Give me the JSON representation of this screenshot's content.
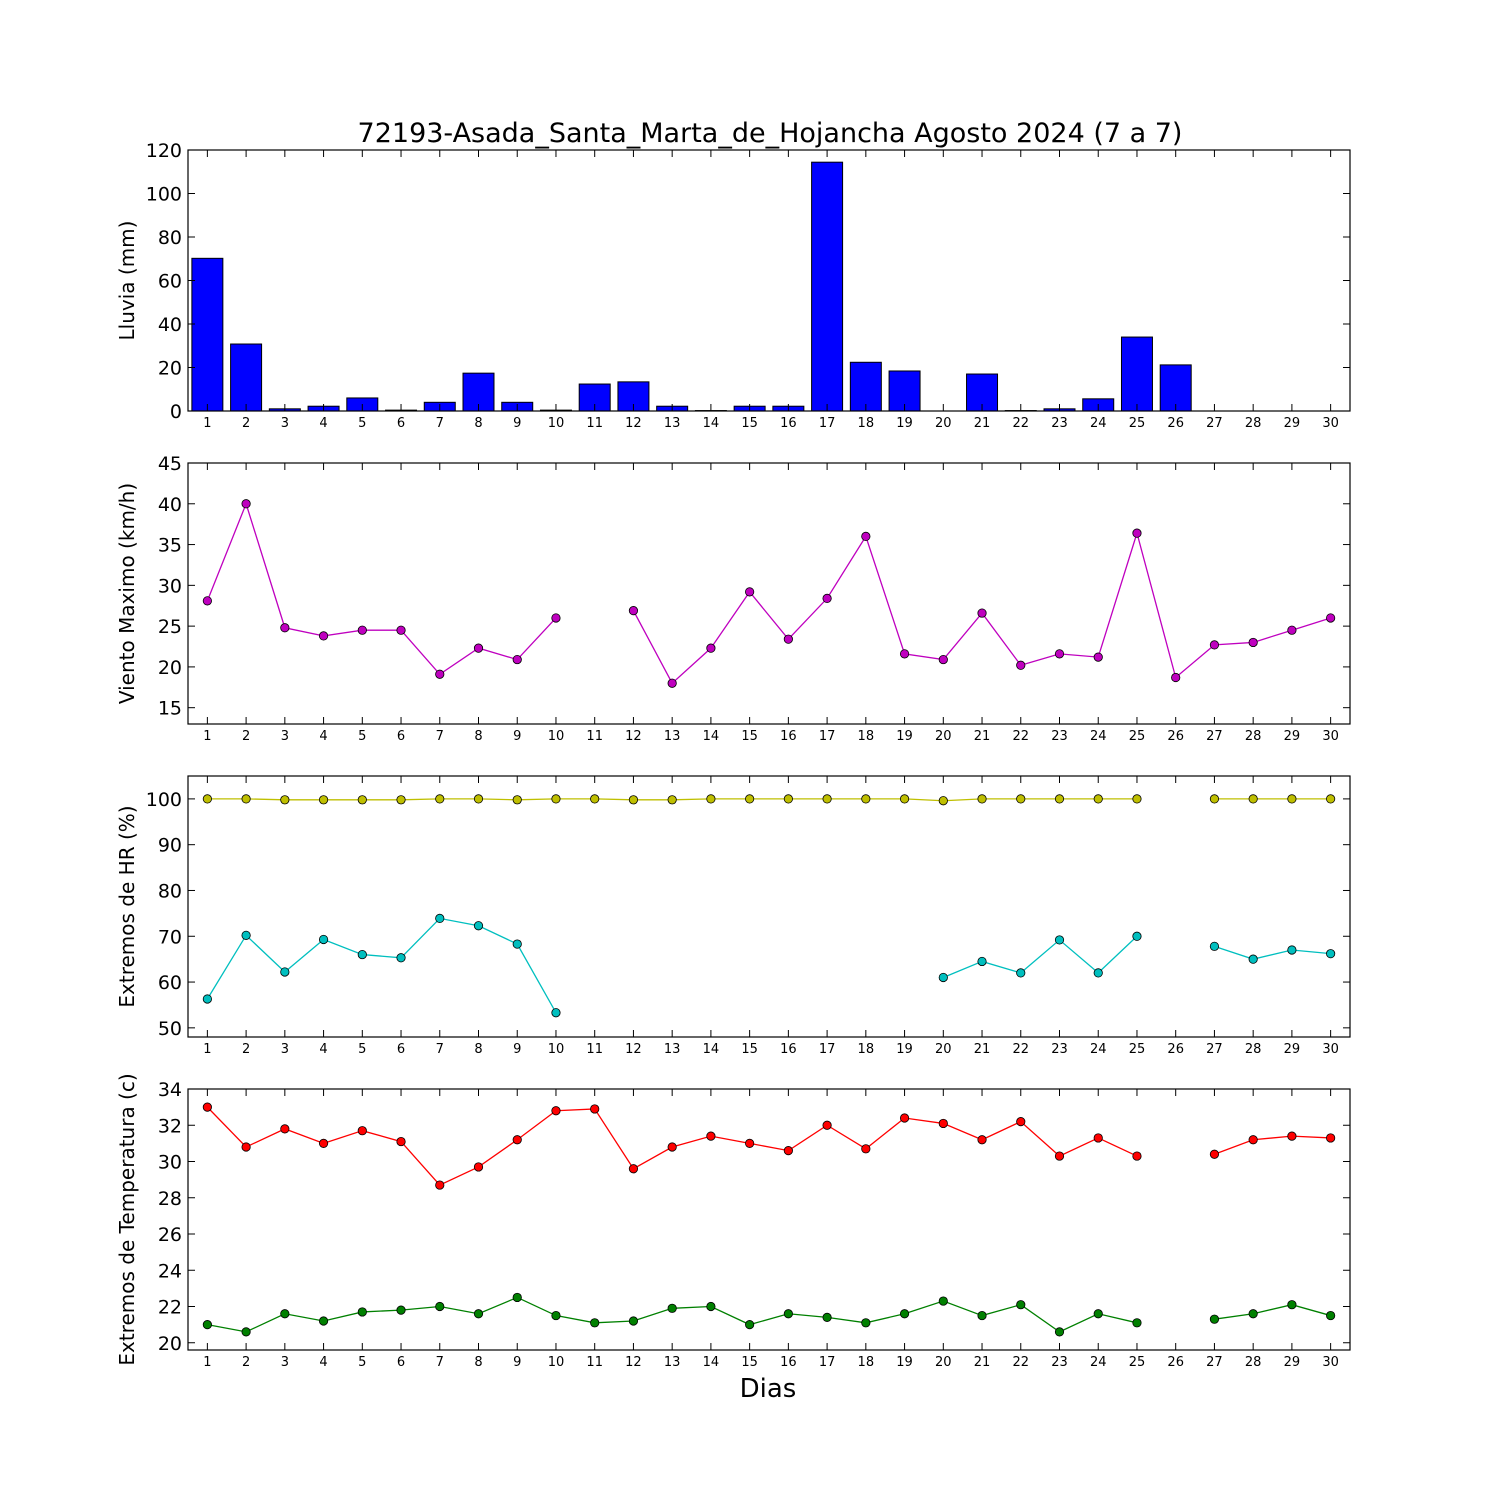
{
  "title": "72193-Asada_Santa_Marta_de_Hojancha Agosto 2024  (7 a 7)",
  "xlabel": "Dias",
  "chart_data": [
    {
      "type": "bar",
      "ylabel": "Lluvia (mm)",
      "ylim": [
        0,
        120
      ],
      "yticks": [
        0,
        20,
        40,
        60,
        80,
        100,
        120
      ],
      "x": [
        1,
        2,
        3,
        4,
        5,
        6,
        7,
        8,
        9,
        10,
        11,
        12,
        13,
        14,
        15,
        16,
        17,
        18,
        19,
        20,
        21,
        22,
        23,
        24,
        25,
        26,
        27,
        28,
        29,
        30
      ],
      "series": [
        {
          "color": "#0000ff",
          "values": [
            70.2,
            30.8,
            1.0,
            2.2,
            6.0,
            0.4,
            4.0,
            17.4,
            4.0,
            0.4,
            12.4,
            13.4,
            2.2,
            0.2,
            2.2,
            2.2,
            114.4,
            22.4,
            18.4,
            0.0,
            17.0,
            0.2,
            1.0,
            5.6,
            34.0,
            21.2,
            0.0,
            0.0,
            0.0,
            0.0
          ]
        }
      ]
    },
    {
      "type": "line",
      "ylabel": "Viento Maximo (km/h)",
      "ylim": [
        13,
        45
      ],
      "yticks": [
        15,
        20,
        25,
        30,
        35,
        40,
        45
      ],
      "x": [
        1,
        2,
        3,
        4,
        5,
        6,
        7,
        8,
        9,
        10,
        11,
        12,
        13,
        14,
        15,
        16,
        17,
        18,
        19,
        20,
        21,
        22,
        23,
        24,
        25,
        26,
        27,
        28,
        29,
        30
      ],
      "series": [
        {
          "color": "#bf00bf",
          "values": [
            28.1,
            40.0,
            24.8,
            23.8,
            24.5,
            24.5,
            19.1,
            22.3,
            20.9,
            26.0,
            null,
            26.9,
            18.0,
            22.3,
            29.2,
            23.4,
            28.4,
            36.0,
            21.6,
            20.9,
            26.6,
            20.2,
            21.6,
            21.2,
            36.4,
            18.7,
            22.7,
            23.0,
            24.5,
            26.0
          ]
        }
      ]
    },
    {
      "type": "line",
      "ylabel": "Extremos de HR (%)",
      "ylim": [
        48,
        105
      ],
      "yticks": [
        50,
        60,
        70,
        80,
        90,
        100
      ],
      "x": [
        1,
        2,
        3,
        4,
        5,
        6,
        7,
        8,
        9,
        10,
        11,
        12,
        13,
        14,
        15,
        16,
        17,
        18,
        19,
        20,
        21,
        22,
        23,
        24,
        25,
        26,
        27,
        28,
        29,
        30
      ],
      "series": [
        {
          "color": "#bfbf00",
          "values": [
            100,
            100,
            99.8,
            99.8,
            99.8,
            99.8,
            100,
            100,
            99.8,
            100,
            100,
            99.8,
            99.8,
            100,
            100,
            100,
            100,
            100,
            100,
            99.6,
            100,
            100,
            100,
            100,
            100,
            null,
            100,
            100,
            100,
            100
          ]
        },
        {
          "color": "#00bfbf",
          "values": [
            56.3,
            70.2,
            62.2,
            69.3,
            66.0,
            65.3,
            73.9,
            72.3,
            68.3,
            53.3,
            null,
            null,
            null,
            null,
            null,
            null,
            null,
            null,
            null,
            61.0,
            64.5,
            62.0,
            69.2,
            62.0,
            70.0,
            null,
            67.8,
            65.0,
            67.0,
            66.2
          ]
        }
      ]
    },
    {
      "type": "line",
      "ylabel": "Extremos de Temperatura (c)",
      "ylim": [
        19.6,
        34
      ],
      "yticks": [
        20,
        22,
        24,
        26,
        28,
        30,
        32,
        34
      ],
      "x": [
        1,
        2,
        3,
        4,
        5,
        6,
        7,
        8,
        9,
        10,
        11,
        12,
        13,
        14,
        15,
        16,
        17,
        18,
        19,
        20,
        21,
        22,
        23,
        24,
        25,
        26,
        27,
        28,
        29,
        30
      ],
      "series": [
        {
          "color": "#ff0000",
          "values": [
            33.0,
            30.8,
            31.8,
            31.0,
            31.7,
            31.1,
            28.7,
            29.7,
            31.2,
            32.8,
            32.9,
            29.6,
            30.8,
            31.4,
            31.0,
            30.6,
            32.0,
            30.7,
            32.4,
            32.1,
            31.2,
            32.2,
            30.3,
            31.3,
            30.3,
            null,
            30.4,
            31.2,
            31.4,
            31.3
          ]
        },
        {
          "color": "#008000",
          "values": [
            21.0,
            20.6,
            21.6,
            21.2,
            21.7,
            21.8,
            22.0,
            21.6,
            22.5,
            21.5,
            21.1,
            21.2,
            21.9,
            22.0,
            21.0,
            21.6,
            21.4,
            21.1,
            21.6,
            22.3,
            21.5,
            22.1,
            20.6,
            21.6,
            21.1,
            null,
            21.3,
            21.6,
            22.1,
            21.5
          ]
        }
      ]
    }
  ]
}
